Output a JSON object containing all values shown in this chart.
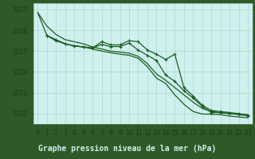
{
  "xlabel": "Graphe pression niveau de la mer (hPa)",
  "x_labels": [
    "0",
    "1",
    "2",
    "3",
    "4",
    "5",
    "6",
    "7",
    "8",
    "9",
    "10",
    "11",
    "12",
    "13",
    "14",
    "15",
    "16",
    "17",
    "18",
    "19",
    "20",
    "21",
    "22",
    "23"
  ],
  "xlim": [
    -0.5,
    23.5
  ],
  "ylim": [
    1021.5,
    1027.3
  ],
  "yticks": [
    1022,
    1023,
    1024,
    1025,
    1026,
    1027
  ],
  "plot_bg_color": "#cff0ee",
  "fig_bg_color": "#2d5a27",
  "grid_color": "#b0d8cc",
  "line_color": "#1a5c22",
  "series": [
    {
      "x": [
        0,
        1,
        2,
        3,
        4,
        5,
        6,
        7,
        8,
        9,
        10,
        11,
        12,
        13,
        14,
        15,
        16,
        17,
        18,
        19,
        20,
        21,
        22,
        23
      ],
      "y": [
        1026.85,
        1026.2,
        1025.8,
        1025.55,
        1025.45,
        1025.35,
        1025.2,
        1025.1,
        1025.0,
        1024.95,
        1024.9,
        1024.75,
        1024.4,
        1023.9,
        1023.6,
        1023.25,
        1022.9,
        1022.55,
        1022.25,
        1022.1,
        1022.05,
        1022.0,
        1021.98,
        1021.95
      ],
      "marker": null,
      "lw": 0.9
    },
    {
      "x": [
        1,
        2,
        3,
        4,
        5,
        6,
        7,
        8,
        9,
        10,
        11,
        12,
        13,
        14,
        15,
        16,
        17,
        18,
        19,
        20,
        21,
        22,
        23
      ],
      "y": [
        1025.75,
        1025.55,
        1025.35,
        1025.25,
        1025.2,
        1025.15,
        1025.45,
        1025.3,
        1025.3,
        1025.5,
        1025.45,
        1025.05,
        1024.85,
        1024.6,
        1024.85,
        1023.25,
        1022.85,
        1022.4,
        1022.15,
        1022.1,
        1022.05,
        1022.0,
        1021.93
      ],
      "marker": "+",
      "lw": 0.9
    },
    {
      "x": [
        1,
        2,
        3,
        4,
        5,
        6,
        7,
        8,
        9,
        10,
        11,
        12,
        13,
        14,
        15,
        16,
        17,
        18,
        19,
        20,
        21,
        22,
        23
      ],
      "y": [
        1025.75,
        1025.5,
        1025.35,
        1025.25,
        1025.2,
        1025.15,
        1025.32,
        1025.22,
        1025.22,
        1025.38,
        1025.05,
        1024.8,
        1024.55,
        1023.85,
        1023.55,
        1023.1,
        1022.75,
        1022.35,
        1022.05,
        1022.05,
        1022.0,
        1021.95,
        1021.9
      ],
      "marker": "+",
      "lw": 0.9
    },
    {
      "x": [
        0,
        1,
        2,
        3,
        4,
        5,
        6,
        7,
        8,
        9,
        10,
        11,
        12,
        13,
        14,
        15,
        16,
        17,
        18,
        19,
        20,
        21,
        22,
        23
      ],
      "y": [
        1026.85,
        1025.75,
        1025.5,
        1025.35,
        1025.25,
        1025.2,
        1025.1,
        1025.0,
        1024.92,
        1024.85,
        1024.8,
        1024.65,
        1024.25,
        1023.7,
        1023.45,
        1022.9,
        1022.45,
        1022.1,
        1021.98,
        1021.97,
        1021.95,
        1021.88,
        1021.84,
        1021.8
      ],
      "marker": null,
      "lw": 0.9
    }
  ],
  "tick_label_fontsize": 5.5,
  "xlabel_fontsize": 7,
  "xlabel_color": "#cff0ee",
  "xlabel_bg": "#2d5a27"
}
